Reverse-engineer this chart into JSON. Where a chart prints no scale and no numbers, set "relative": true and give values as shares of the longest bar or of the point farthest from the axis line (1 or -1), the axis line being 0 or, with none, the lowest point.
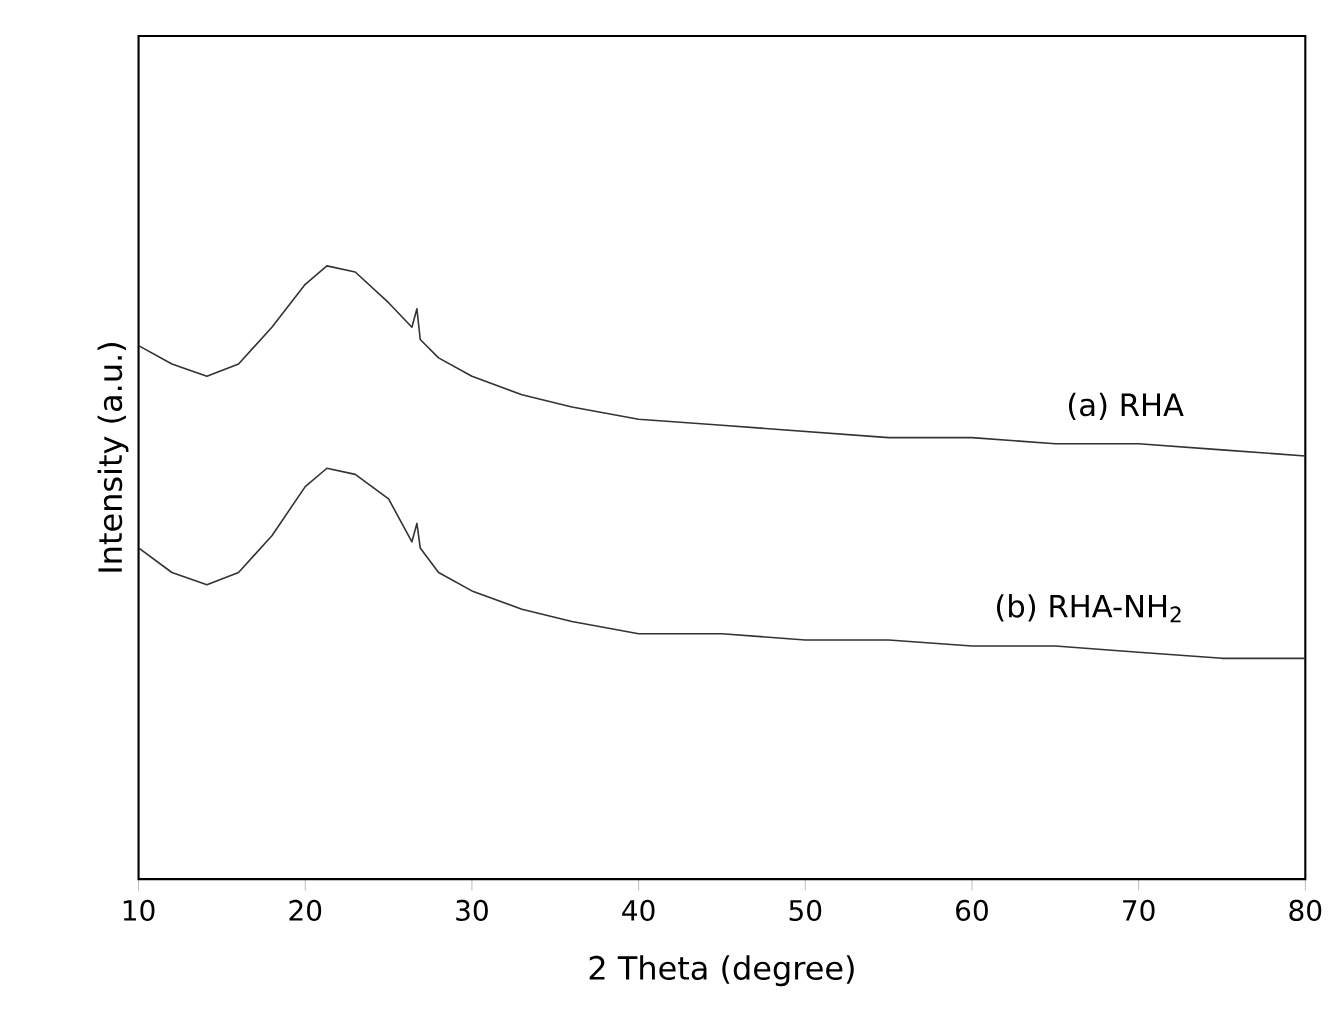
{
  "chart_data": {
    "type": "line",
    "xlabel": "2 Theta (degree)",
    "ylabel": "Intensity (a.u.)",
    "relative": true,
    "xlim": [
      10,
      80
    ],
    "xticks": [
      10,
      20,
      30,
      40,
      50,
      60,
      70,
      80
    ],
    "marker": "none",
    "line_style": "solid",
    "series": [
      {
        "name": "(a) RHA",
        "color": "#333333",
        "x": [
          10,
          12,
          14.1,
          16,
          18,
          20,
          21.3,
          23,
          25,
          26.4,
          26.7,
          26.9,
          28,
          30,
          33,
          36,
          40,
          45,
          50,
          55,
          60,
          65,
          70,
          75,
          80
        ],
        "values": [
          0.87,
          0.84,
          0.82,
          0.84,
          0.9,
          0.97,
          1.0,
          0.99,
          0.94,
          0.9,
          0.93,
          0.88,
          0.85,
          0.82,
          0.79,
          0.77,
          0.75,
          0.74,
          0.73,
          0.72,
          0.72,
          0.71,
          0.71,
          0.7,
          0.69
        ]
      },
      {
        "name": "(b) RHA-NH$_{2}$",
        "color": "#333333",
        "x": [
          10,
          12,
          14.1,
          16,
          18,
          20,
          21.3,
          23,
          25,
          26.4,
          26.7,
          26.9,
          28,
          30,
          33,
          36,
          40,
          45,
          50,
          55,
          60,
          65,
          70,
          75,
          80
        ],
        "values": [
          0.54,
          0.5,
          0.48,
          0.5,
          0.56,
          0.64,
          0.67,
          0.66,
          0.62,
          0.55,
          0.58,
          0.54,
          0.5,
          0.47,
          0.44,
          0.42,
          0.4,
          0.4,
          0.39,
          0.39,
          0.38,
          0.38,
          0.37,
          0.36,
          0.36
        ]
      }
    ]
  }
}
